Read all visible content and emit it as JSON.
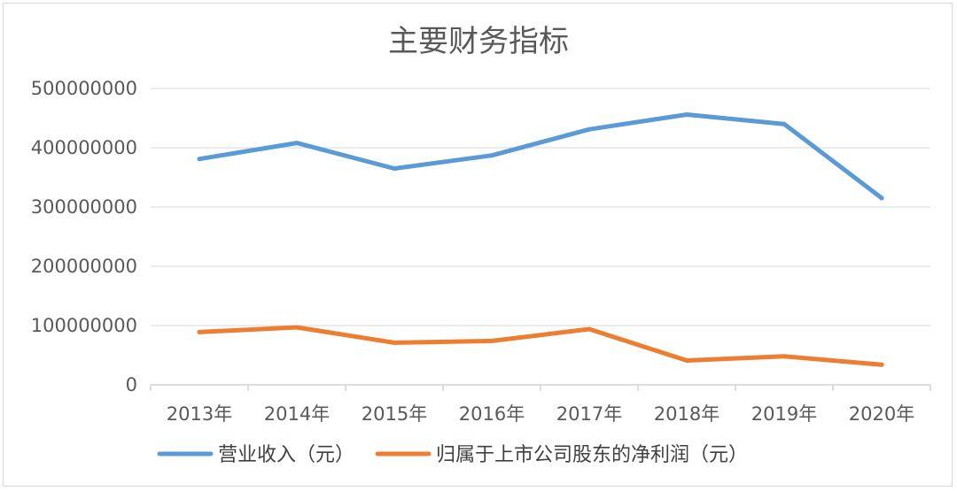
{
  "chart_data": {
    "type": "line",
    "title": "主要财务指标",
    "categories": [
      "2013年",
      "2014年",
      "2015年",
      "2016年",
      "2017年",
      "2018年",
      "2019年",
      "2020年"
    ],
    "yticks": [
      "0",
      "100000000",
      "200000000",
      "300000000",
      "400000000",
      "500000000"
    ],
    "ylim": [
      0,
      500000000
    ],
    "grid": true,
    "legend_position": "bottom",
    "series": [
      {
        "name": "营业收入（元）",
        "color": "#5b9bd5",
        "values": [
          381000000,
          408000000,
          365000000,
          387000000,
          431000000,
          456000000,
          440000000,
          315000000
        ]
      },
      {
        "name": "归属于上市公司股东的净利润（元）",
        "color": "#ed7d31",
        "values": [
          89000000,
          97000000,
          71000000,
          74000000,
          94000000,
          41000000,
          48000000,
          34000000
        ]
      }
    ]
  }
}
